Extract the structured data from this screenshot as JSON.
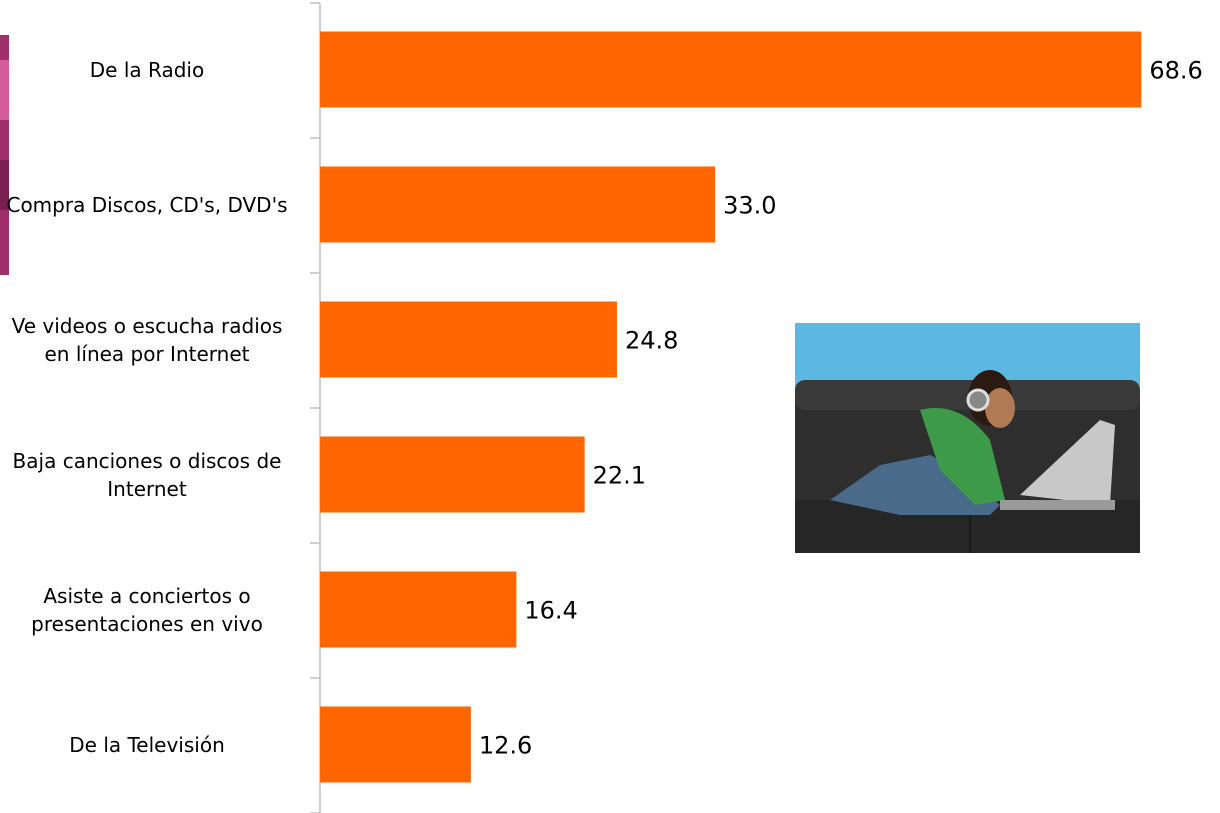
{
  "chart_data": {
    "type": "barh",
    "categories": [
      "De la Radio",
      "Compra Discos, CD's, DVD's",
      "Ve videos o escucha radios en línea por Internet",
      "Baja canciones o discos de Internet",
      "Asiste a conciertos o presentaciones en vivo",
      "De la Televisión"
    ],
    "values": [
      68.6,
      33.0,
      24.8,
      22.1,
      16.4,
      12.6
    ],
    "value_labels": [
      "68.6",
      "33.0",
      "24.8",
      "22.1",
      "16.4",
      "12.6"
    ],
    "color": "#ff6600",
    "xlim": [
      0,
      75
    ]
  }
}
